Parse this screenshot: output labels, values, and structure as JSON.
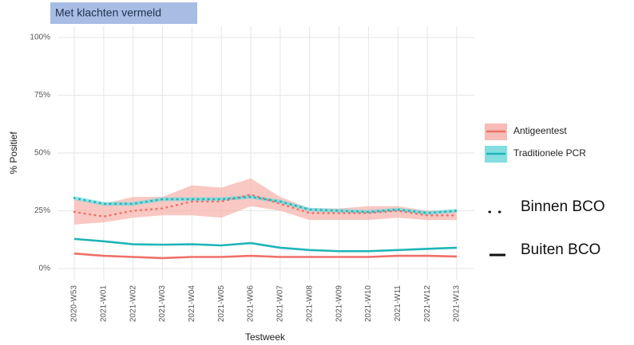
{
  "chart_data": {
    "type": "line",
    "title": "Met klachten vermeld",
    "x_label": "Testweek",
    "y_label": "% Positief",
    "categories": [
      "2020-W53",
      "2021-W01",
      "2021-W02",
      "2021-W03",
      "2021-W04",
      "2021-W05",
      "2021-W06",
      "2021-W07",
      "2021-W08",
      "2021-W09",
      "2021-W10",
      "2021-W11",
      "2021-W12",
      "2021-W13"
    ],
    "ylim": [
      0,
      100
    ],
    "yticks": [
      {
        "value": 0,
        "label": "0%"
      },
      {
        "value": 25,
        "label": "25%"
      },
      {
        "value": 50,
        "label": "50%"
      },
      {
        "value": 75,
        "label": "75%"
      },
      {
        "value": 100,
        "label": "100%"
      }
    ],
    "grid": true,
    "series": [
      {
        "name": "Antigeentest",
        "color": "#ee7068",
        "fill": "#f6b0aa",
        "binnen": [
          24.5,
          22.5,
          25,
          26,
          29,
          29,
          32,
          28,
          24,
          24,
          24,
          25,
          23,
          23
        ],
        "binnen_lower": [
          19,
          20,
          22,
          23,
          23,
          22,
          27,
          25,
          21,
          21,
          21,
          22,
          21,
          21
        ],
        "binnen_upper": [
          30,
          28,
          31,
          31,
          36,
          35,
          39,
          31,
          26,
          26,
          27,
          27,
          25,
          25
        ],
        "buiten": [
          6.5,
          5.5,
          5,
          4.5,
          5,
          5,
          5.5,
          5,
          5,
          5,
          5,
          5.5,
          5.5,
          5.2
        ]
      },
      {
        "name": "Traditionele PCR",
        "color": "#1fb5b8",
        "fill": "#6fd8db",
        "binnen": [
          30.5,
          28,
          28,
          30,
          30,
          30,
          31,
          29,
          25.5,
          25,
          24.5,
          25.5,
          24,
          25
        ],
        "binnen_lower": [
          29.7,
          27.2,
          27.2,
          29.2,
          29.2,
          29.2,
          30.2,
          28.2,
          24.7,
          24.2,
          23.7,
          24.7,
          23.2,
          24.2
        ],
        "binnen_upper": [
          31.3,
          28.8,
          28.8,
          30.8,
          30.8,
          30.8,
          31.8,
          29.8,
          26.3,
          25.8,
          25.3,
          26.3,
          24.8,
          25.8
        ],
        "buiten": [
          12.8,
          11.8,
          10.5,
          10.3,
          10.5,
          10,
          11,
          9,
          8,
          7.5,
          7.5,
          8,
          8.5,
          9
        ]
      }
    ],
    "line_legend": [
      {
        "label": "Binnen BCO",
        "dash": "dotted"
      },
      {
        "label": "Buiten BCO",
        "dash": "solid"
      }
    ]
  }
}
